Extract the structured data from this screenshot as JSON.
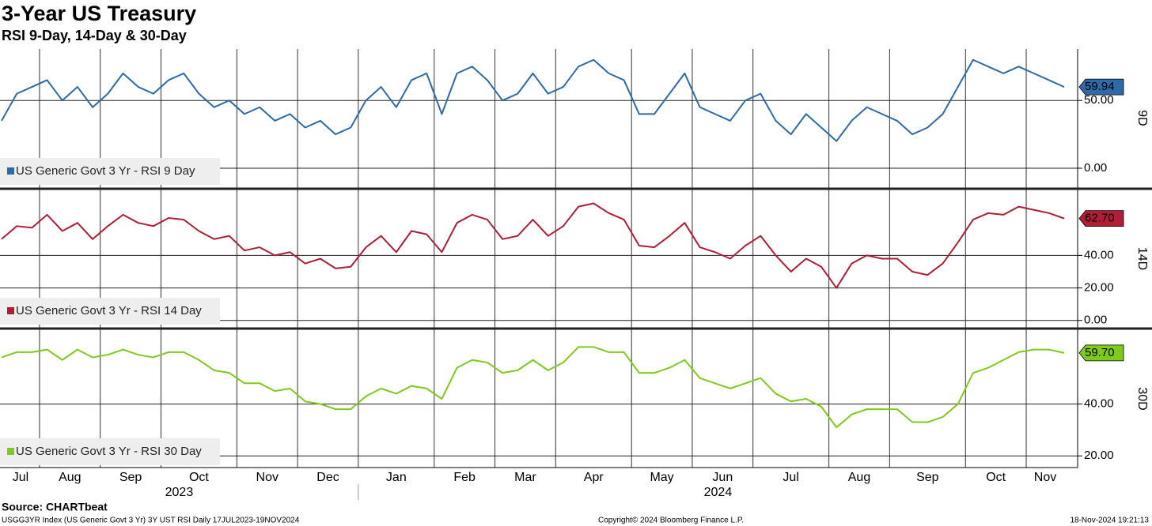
{
  "title": "3-Year US Treasury",
  "subtitle": "RSI 9-Day, 14-Day & 30-Day",
  "source": "Source: CHARTbeat",
  "footer": {
    "left": "USGG3YR Index (US Generic Govt 3 Yr) 3Y UST RSI  Daily 17JUL2023-19NOV2024",
    "center": "Copyright© 2024 Bloomberg Finance L.P.",
    "right": "18-Nov-2024 19:21:13"
  },
  "x_axis": {
    "categories": [
      "Jul",
      null,
      null,
      "Aug",
      null,
      null,
      null,
      "Sep",
      null,
      null,
      null,
      "Oct",
      null,
      null,
      null,
      null,
      "Nov",
      null,
      null,
      null,
      "Dec",
      null,
      null,
      null,
      "Jan",
      null,
      null,
      null,
      null,
      "Feb",
      null,
      null,
      null,
      "Mar",
      null,
      null,
      null,
      "Apr",
      null,
      null,
      null,
      null,
      "May",
      null,
      null,
      null,
      "Jun",
      null,
      null,
      null,
      "Jul",
      null,
      null,
      null,
      null,
      "Aug",
      null,
      null,
      null,
      "Sep",
      null,
      null,
      null,
      null,
      "Oct",
      null,
      null,
      null,
      "Nov",
      null,
      null
    ],
    "years": [
      "2023",
      "2024"
    ]
  },
  "chart_data": [
    {
      "type": "line",
      "axis_label": "9D",
      "ylim": [
        -14,
        88
      ],
      "yticks": [
        {
          "value": 0,
          "label": "0.00"
        },
        {
          "value": 50,
          "label": "50.00"
        }
      ],
      "grid": true,
      "series": [
        {
          "name": "US Generic Govt 3 Yr - RSI 9 Day",
          "color": "#2e6aa8",
          "label_text_color": "#ffffff",
          "values": [
            35,
            55,
            60,
            65,
            50,
            60,
            45,
            55,
            70,
            60,
            55,
            65,
            70,
            55,
            45,
            50,
            40,
            45,
            35,
            40,
            30,
            35,
            25,
            30,
            50,
            60,
            45,
            65,
            70,
            40,
            70,
            75,
            65,
            50,
            55,
            70,
            55,
            60,
            75,
            80,
            70,
            65,
            40,
            40,
            55,
            70,
            45,
            40,
            35,
            50,
            55,
            35,
            25,
            40,
            30,
            20,
            35,
            45,
            40,
            35,
            25,
            30,
            40,
            60,
            80,
            75,
            70,
            75,
            70,
            65,
            59.94
          ],
          "value_labels": [
            null,
            null,
            null,
            null,
            null,
            null,
            null,
            null,
            null,
            null,
            null,
            null,
            null,
            null,
            null,
            null,
            null,
            null,
            null,
            null,
            null,
            null,
            null,
            null,
            null,
            null,
            null,
            null,
            null,
            null,
            null,
            null,
            null,
            null,
            null,
            null,
            null,
            null,
            null,
            null,
            null,
            null,
            null,
            null,
            null,
            null,
            null,
            null,
            null,
            null,
            null,
            null,
            null,
            null,
            null,
            null,
            null,
            null,
            null,
            null,
            null,
            null,
            null,
            null,
            null,
            null,
            null,
            null,
            null,
            null,
            "59.94"
          ]
        }
      ]
    },
    {
      "type": "line",
      "axis_label": "14D",
      "ylim": [
        -4,
        80
      ],
      "yticks": [
        {
          "value": 0,
          "label": "0.00"
        },
        {
          "value": 20,
          "label": "20.00"
        },
        {
          "value": 40,
          "label": "40.00"
        }
      ],
      "grid": true,
      "series": [
        {
          "name": "US Generic Govt 3 Yr - RSI 14 Day",
          "color": "#b01e35",
          "label_text_color": "#ffffff",
          "values": [
            50,
            58,
            57,
            65,
            55,
            60,
            50,
            58,
            65,
            60,
            58,
            63,
            62,
            55,
            50,
            52,
            43,
            45,
            40,
            42,
            35,
            38,
            32,
            33,
            45,
            52,
            42,
            55,
            53,
            42,
            60,
            65,
            62,
            50,
            52,
            62,
            52,
            58,
            70,
            72,
            66,
            62,
            46,
            45,
            52,
            60,
            45,
            42,
            38,
            46,
            52,
            40,
            30,
            38,
            33,
            20,
            35,
            40,
            38,
            38,
            30,
            28,
            35,
            48,
            62,
            66,
            65,
            70,
            68,
            66,
            62.7
          ],
          "value_labels": [
            null,
            null,
            null,
            null,
            null,
            null,
            null,
            null,
            null,
            null,
            null,
            null,
            null,
            null,
            null,
            null,
            null,
            null,
            null,
            null,
            null,
            null,
            null,
            null,
            null,
            null,
            null,
            null,
            null,
            null,
            null,
            null,
            null,
            null,
            null,
            null,
            null,
            null,
            null,
            null,
            null,
            null,
            null,
            null,
            null,
            null,
            null,
            null,
            null,
            null,
            null,
            null,
            null,
            null,
            null,
            null,
            null,
            null,
            null,
            null,
            null,
            null,
            null,
            null,
            null,
            null,
            null,
            null,
            null,
            null,
            "62.70"
          ]
        }
      ]
    },
    {
      "type": "line",
      "axis_label": "30D",
      "ylim": [
        15.5,
        68.5
      ],
      "yticks": [
        {
          "value": 20,
          "label": "20.00"
        },
        {
          "value": 40,
          "label": "40.00"
        }
      ],
      "grid": true,
      "series": [
        {
          "name": "US Generic Govt 3 Yr - RSI 30 Day",
          "color": "#7ecb1c",
          "label_text_color": "#000000",
          "values": [
            58,
            60,
            60,
            61,
            57,
            61,
            58,
            59,
            61,
            59,
            58,
            60,
            60,
            57,
            53,
            52,
            48,
            48,
            45,
            46,
            41,
            40,
            38,
            38,
            43,
            46,
            44,
            47,
            46,
            42,
            54,
            57,
            56,
            52,
            53,
            57,
            53,
            56,
            62,
            62,
            60,
            60,
            52,
            52,
            54,
            57,
            50,
            48,
            46,
            48,
            50,
            44,
            41,
            42,
            39,
            31,
            36,
            38,
            38,
            38,
            33,
            33,
            35,
            40,
            52,
            54,
            57,
            60,
            61,
            61,
            59.7
          ],
          "value_labels": [
            null,
            null,
            null,
            null,
            null,
            null,
            null,
            null,
            null,
            null,
            null,
            null,
            null,
            null,
            null,
            null,
            null,
            null,
            null,
            null,
            null,
            null,
            null,
            null,
            null,
            null,
            null,
            null,
            null,
            null,
            null,
            null,
            null,
            null,
            null,
            null,
            null,
            null,
            null,
            null,
            null,
            null,
            null,
            null,
            null,
            null,
            null,
            null,
            null,
            null,
            null,
            null,
            null,
            null,
            null,
            null,
            null,
            null,
            null,
            null,
            null,
            null,
            null,
            null,
            null,
            null,
            null,
            null,
            null,
            null,
            "59.70"
          ]
        }
      ]
    }
  ]
}
